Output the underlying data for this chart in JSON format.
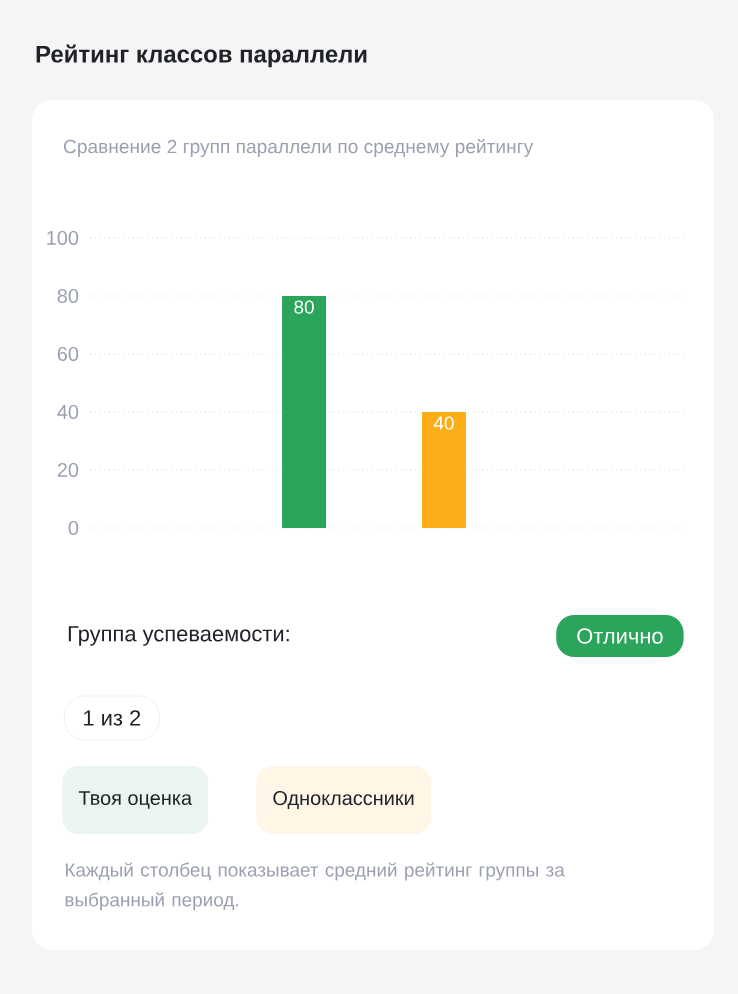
{
  "chart_data": {
    "type": "bar",
    "title": "Рейтинг классов параллели",
    "subtitle": "Сравнение 2 групп параллели по среднему рейтингу",
    "categories": [
      null,
      null
    ],
    "values": [
      80,
      40
    ],
    "colors": [
      "#2aa55b",
      "#fbae17"
    ],
    "ylim": [
      0,
      100
    ],
    "yticks": [
      0,
      20,
      40,
      60,
      80,
      100
    ],
    "grid": "y",
    "data_labels": true,
    "annotations": [
      "Группа успеваемости:",
      "Отлично",
      "1 из 2",
      "Твоя оценка",
      "Одноклассники",
      "Каждый столбец показывает средний рейтинг группы за выбранный период."
    ]
  }
}
